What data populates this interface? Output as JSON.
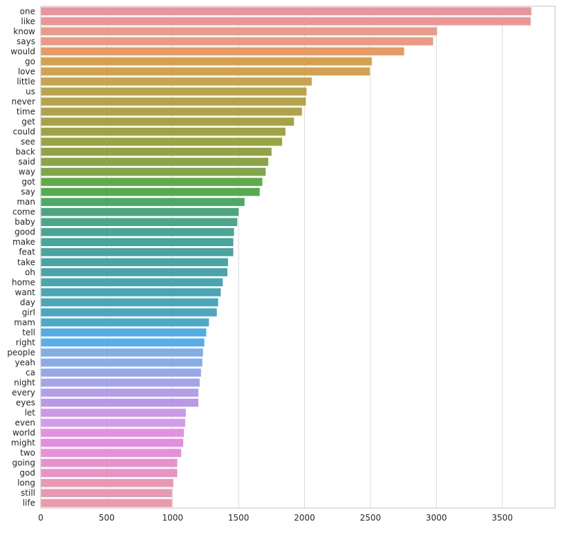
{
  "chart_data": {
    "type": "bar",
    "orientation": "horizontal",
    "title": "",
    "xlabel": "",
    "ylabel": "",
    "xlim": [
      0,
      3900
    ],
    "xticks": [
      0,
      500,
      1000,
      1500,
      2000,
      2500,
      3000,
      3500
    ],
    "grid": "vertical",
    "palette": "husl",
    "categories": [
      "one",
      "like",
      "know",
      "says",
      "would",
      "go",
      "love",
      "little",
      "us",
      "never",
      "time",
      "get",
      "could",
      "see",
      "back",
      "said",
      "way",
      "got",
      "say",
      "man",
      "come",
      "baby",
      "good",
      "make",
      "feat",
      "take",
      "oh",
      "home",
      "want",
      "day",
      "girl",
      "mam",
      "tell",
      "right",
      "people",
      "yeah",
      "ca",
      "night",
      "every",
      "eyes",
      "let",
      "even",
      "world",
      "might",
      "two",
      "going",
      "god",
      "long",
      "still",
      "life"
    ],
    "values": [
      3720,
      3715,
      3005,
      2975,
      2755,
      2510,
      2495,
      2055,
      2015,
      2010,
      1980,
      1920,
      1855,
      1830,
      1750,
      1725,
      1705,
      1680,
      1660,
      1545,
      1500,
      1490,
      1465,
      1460,
      1460,
      1420,
      1415,
      1380,
      1365,
      1345,
      1335,
      1275,
      1255,
      1240,
      1230,
      1225,
      1215,
      1205,
      1195,
      1195,
      1100,
      1095,
      1085,
      1080,
      1065,
      1035,
      1035,
      1005,
      995,
      995
    ],
    "colors": [
      "#ee9399",
      "#ee9697",
      "#ec9a8a",
      "#ec9a85",
      "#e89a62",
      "#d6a04e",
      "#d4a14f",
      "#caa34e",
      "#bca44b",
      "#b6a349",
      "#b1a348",
      "#a6a345",
      "#9ea444",
      "#99a445",
      "#92a346",
      "#8aa447",
      "#80a649",
      "#61aa4a",
      "#56ab4e",
      "#4ea868",
      "#4ca77e",
      "#4ba68a",
      "#4aa595",
      "#4aa49b",
      "#4aa4a0",
      "#4ba4a4",
      "#4aa4a9",
      "#4ba4ae",
      "#4ca5b4",
      "#4ca5b9",
      "#4da6be",
      "#4fa8c7",
      "#55ace0",
      "#5aade6",
      "#81aee4",
      "#8aabe6",
      "#96a8e8",
      "#a4a4eb",
      "#b29ee9",
      "#ba98e8",
      "#c89be6",
      "#d49be8",
      "#e290e4",
      "#e68ce0",
      "#e88fd9",
      "#e892cc",
      "#eb91c6",
      "#ea97b4",
      "#ea98b0",
      "#eb9aaa"
    ]
  }
}
